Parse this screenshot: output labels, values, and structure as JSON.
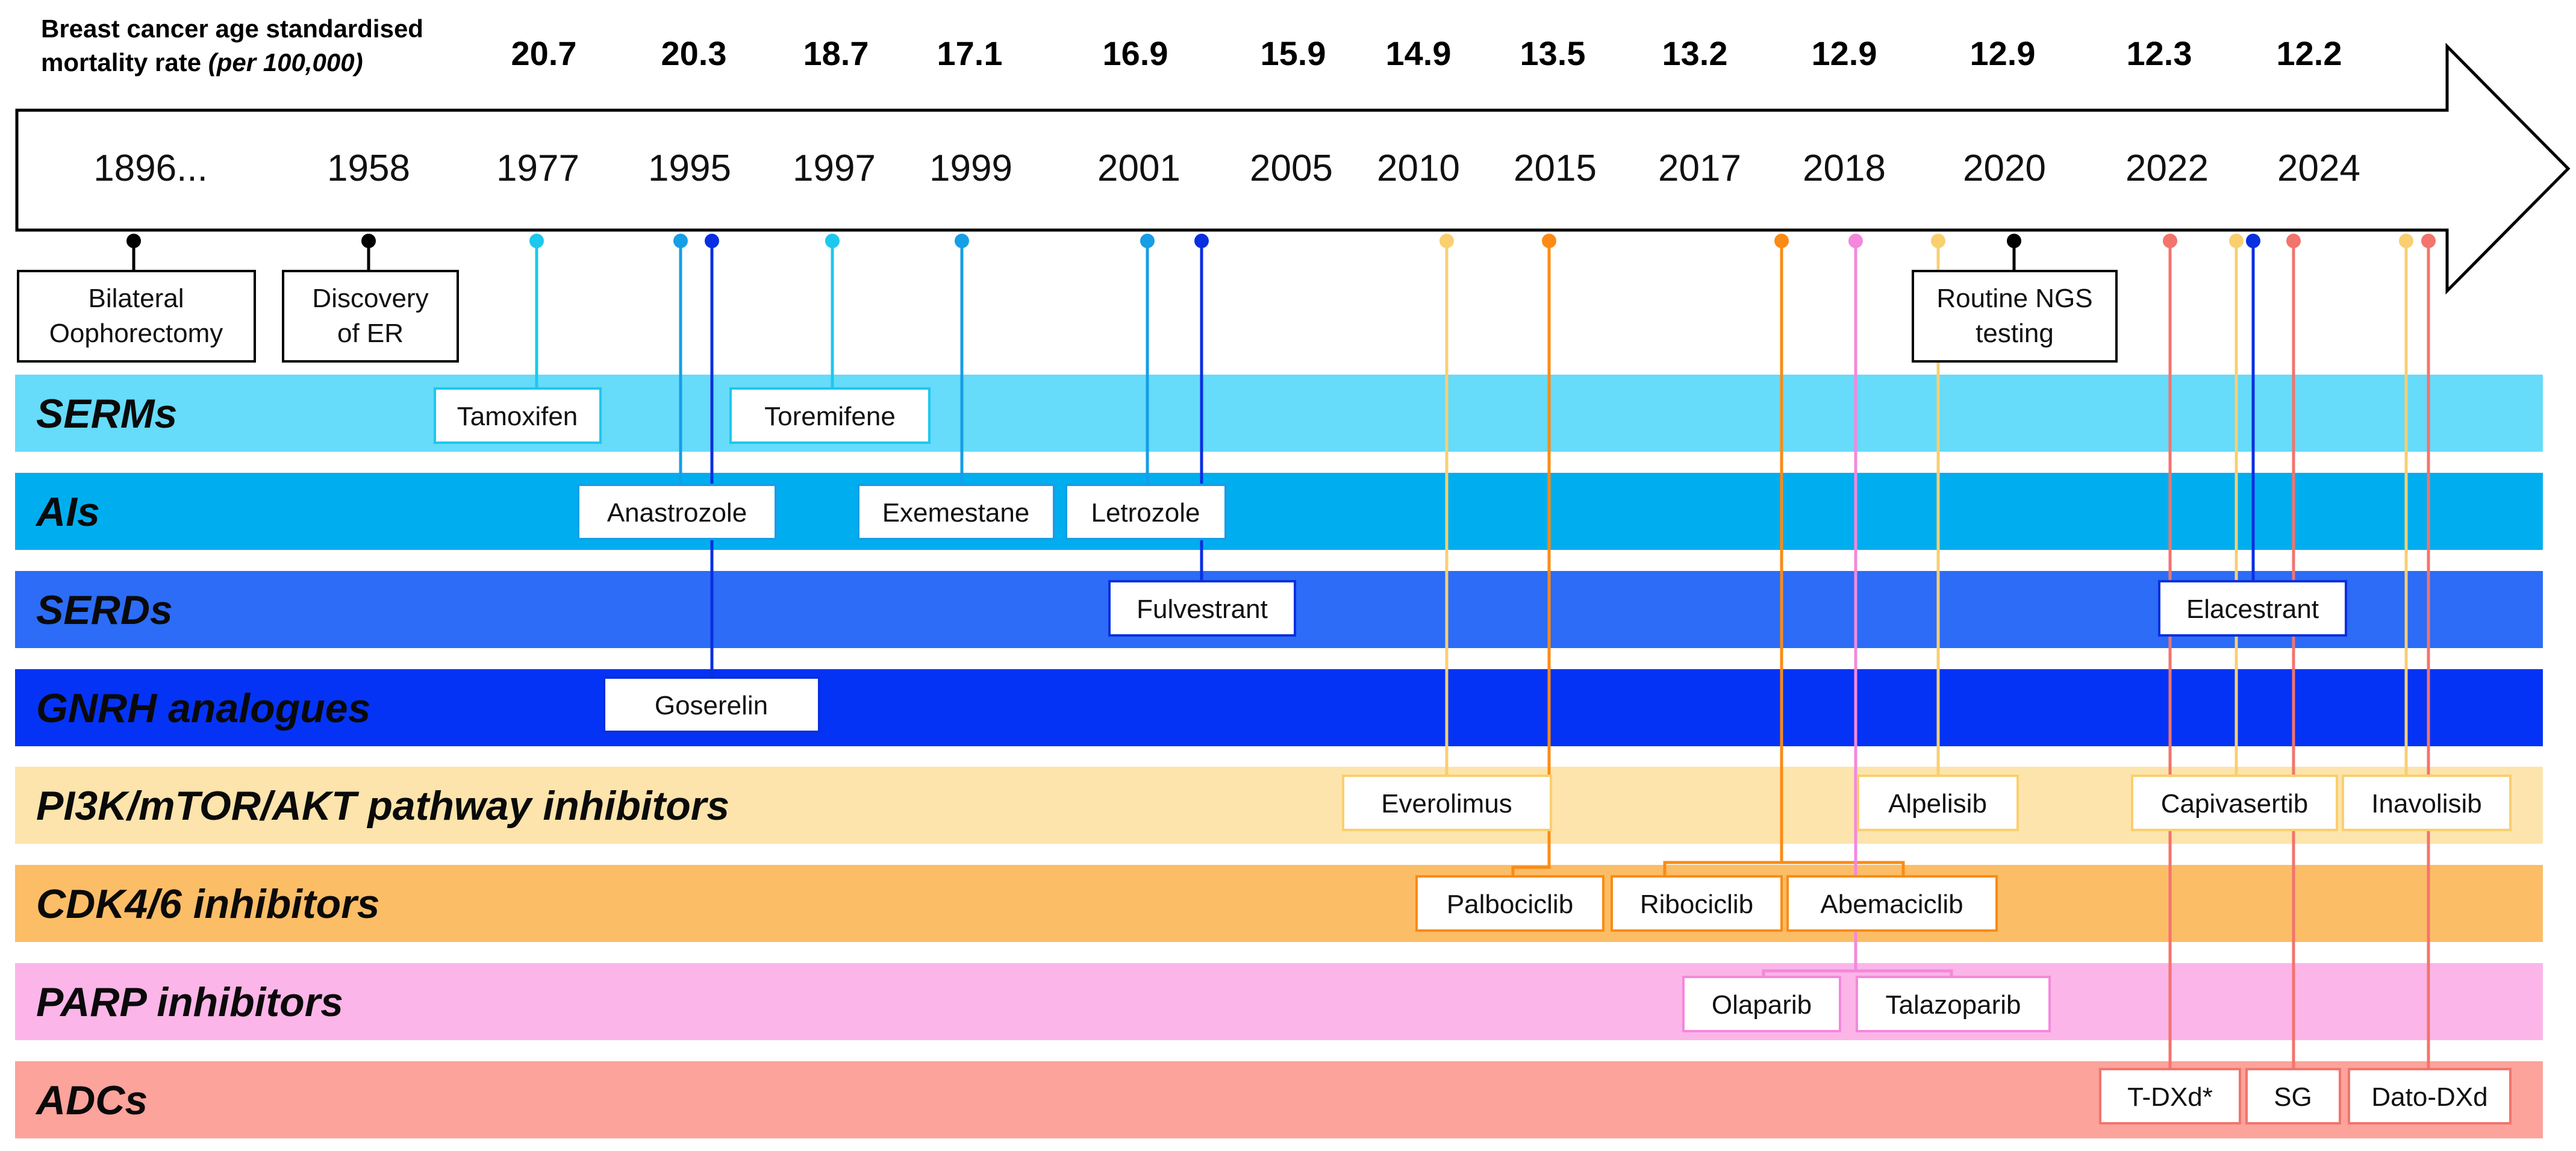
{
  "header": {
    "mortality_label_line1": "Breast cancer age standardised",
    "mortality_label_line2_plain": "mortality rate ",
    "mortality_label_line2_italic": "(per 100,000)"
  },
  "mortality_rates": [
    "20.7",
    "20.3",
    "18.7",
    "17.1",
    "16.9",
    "15.9",
    "14.9",
    "13.5",
    "13.2",
    "12.9",
    "12.9",
    "12.3",
    "12.2"
  ],
  "years": [
    "1896...",
    "1958",
    "1977",
    "1995",
    "1997",
    "1999",
    "2001",
    "2005",
    "2010",
    "2015",
    "2017",
    "2018",
    "2020",
    "2022",
    "2024"
  ],
  "milestones": [
    {
      "lines": [
        "Bilateral",
        "Oophorectomy"
      ]
    },
    {
      "lines": [
        "Discovery",
        "of ER"
      ]
    },
    {
      "lines": [
        "Routine NGS",
        "testing"
      ]
    }
  ],
  "categories": [
    {
      "label": "SERMs",
      "color": "#66DBFA"
    },
    {
      "label": "AIs",
      "color": "#00AEEF"
    },
    {
      "label": "SERDs",
      "color": "#2C6CF6"
    },
    {
      "label": "GNRH analogues",
      "color": "#0433F5"
    },
    {
      "label": "PI3K/mTOR/AKT pathway inhibitors",
      "color": "#FCE4AC"
    },
    {
      "label": "CDK4/6 inhibitors",
      "color": "#FCBD67"
    },
    {
      "label": "PARP inhibitors",
      "color": "#FCB5E8"
    },
    {
      "label": "ADCs",
      "color": "#FCA39B"
    }
  ],
  "drugs": [
    {
      "name": "Tamoxifen"
    },
    {
      "name": "Toremifene"
    },
    {
      "name": "Anastrozole"
    },
    {
      "name": "Exemestane"
    },
    {
      "name": "Letrozole"
    },
    {
      "name": "Fulvestrant"
    },
    {
      "name": "Elacestrant"
    },
    {
      "name": "Goserelin"
    },
    {
      "name": "Everolimus"
    },
    {
      "name": "Alpelisib"
    },
    {
      "name": "Capivasertib"
    },
    {
      "name": "Inavolisib"
    },
    {
      "name": "Palbociclib"
    },
    {
      "name": "Ribociclib"
    },
    {
      "name": "Abemaciclib"
    },
    {
      "name": "Olaparib"
    },
    {
      "name": "Talazoparib"
    },
    {
      "name": "T-DXd*"
    },
    {
      "name": "SG"
    },
    {
      "name": "Dato-DXd"
    }
  ],
  "colors": {
    "serm_line": "#1CC8EE",
    "ai_line": "#169EE6",
    "serd_line": "#0A2FE0",
    "pi3k_line": "#F9CF70",
    "cdk_line": "#FB8B15",
    "parp_line": "#F388DC",
    "adc_line": "#F2746D",
    "milestone_line": "#000000"
  }
}
